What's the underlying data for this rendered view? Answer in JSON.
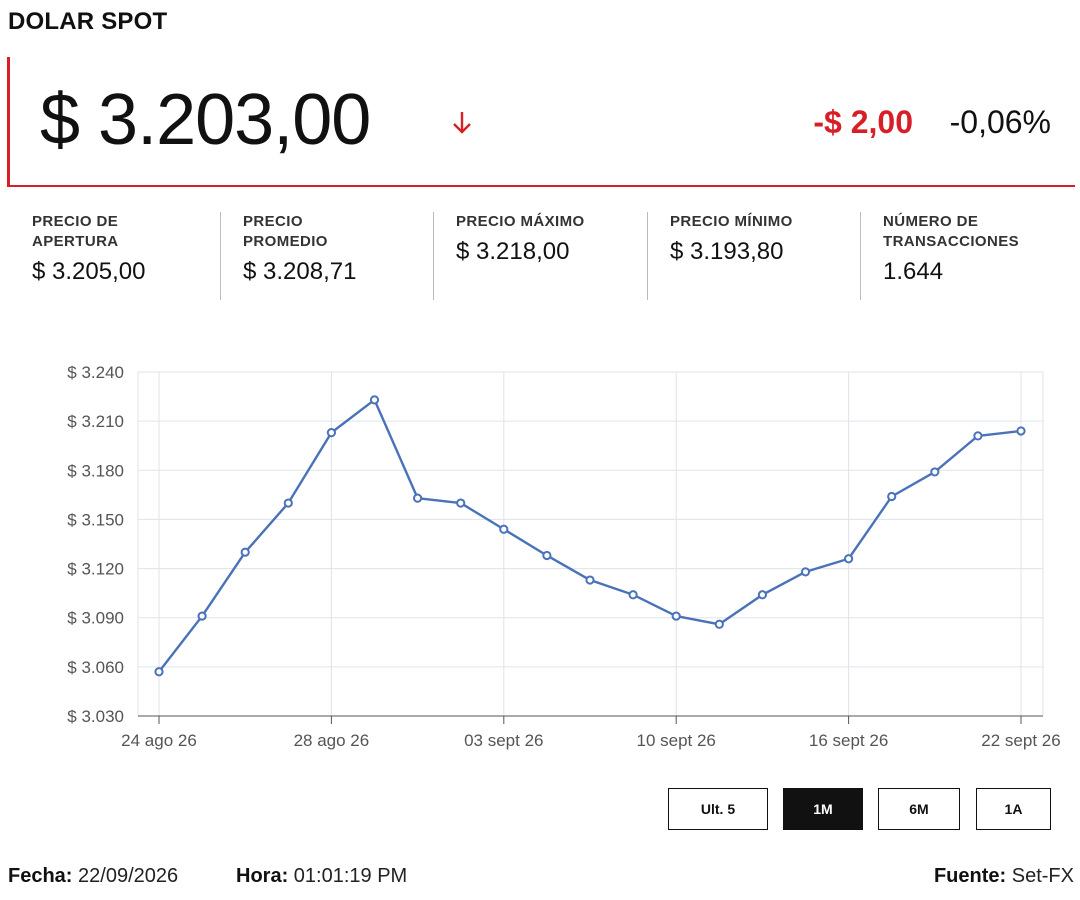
{
  "header": {
    "title": "DOLAR SPOT"
  },
  "price": {
    "current": "$ 3.203,00",
    "direction_icon": "arrow-down-icon",
    "change_abs": "-$ 2,00",
    "change_pct": "-0,06%",
    "down_color": "#d61f26"
  },
  "stats": [
    {
      "label_lines": [
        "PRECIO DE",
        "APERTURA"
      ],
      "value": "$ 3.205,00"
    },
    {
      "label_lines": [
        "PRECIO",
        "PROMEDIO"
      ],
      "value": "$ 3.208,71"
    },
    {
      "label_lines": [
        "PRECIO MÁXIMO"
      ],
      "value": "$ 3.218,00"
    },
    {
      "label_lines": [
        "PRECIO MÍNIMO"
      ],
      "value": "$ 3.193,80"
    },
    {
      "label_lines": [
        "NÚMERO DE",
        "TRANSACCIONES"
      ],
      "value": "1.644"
    }
  ],
  "range_buttons": [
    {
      "label": "Ult. 5",
      "active": false
    },
    {
      "label": "1M",
      "active": true
    },
    {
      "label": "6M",
      "active": false
    },
    {
      "label": "1A",
      "active": false
    }
  ],
  "footer": {
    "date_label": "Fecha:",
    "date_value": "22/09/2026",
    "time_label": "Hora:",
    "time_value": "01:01:19 PM",
    "source_label": "Fuente:",
    "source_value": "Set-FX"
  },
  "chart_data": {
    "type": "line",
    "line_color": "#4a72b8",
    "grid": true,
    "ylim": [
      3030,
      3240
    ],
    "ytick_values": [
      3030,
      3060,
      3090,
      3120,
      3150,
      3180,
      3210,
      3240
    ],
    "ytick_labels": [
      "$ 3.030",
      "$ 3.060",
      "$ 3.090",
      "$ 3.120",
      "$ 3.150",
      "$ 3.180",
      "$ 3.210",
      "$ 3.240"
    ],
    "xtick_labels": [
      "24 ago 26",
      "28 ago 26",
      "03 sept 26",
      "10 sept 26",
      "16 sept 26",
      "22 sept 26"
    ],
    "xtick_point_index": [
      0,
      4,
      8,
      12,
      16,
      20
    ],
    "values": [
      3057,
      3091,
      3130,
      3160,
      3203,
      3223,
      3163,
      3160,
      3144,
      3128,
      3113,
      3104,
      3091,
      3086,
      3104,
      3118,
      3126,
      3164,
      3179,
      3201,
      3204
    ]
  }
}
